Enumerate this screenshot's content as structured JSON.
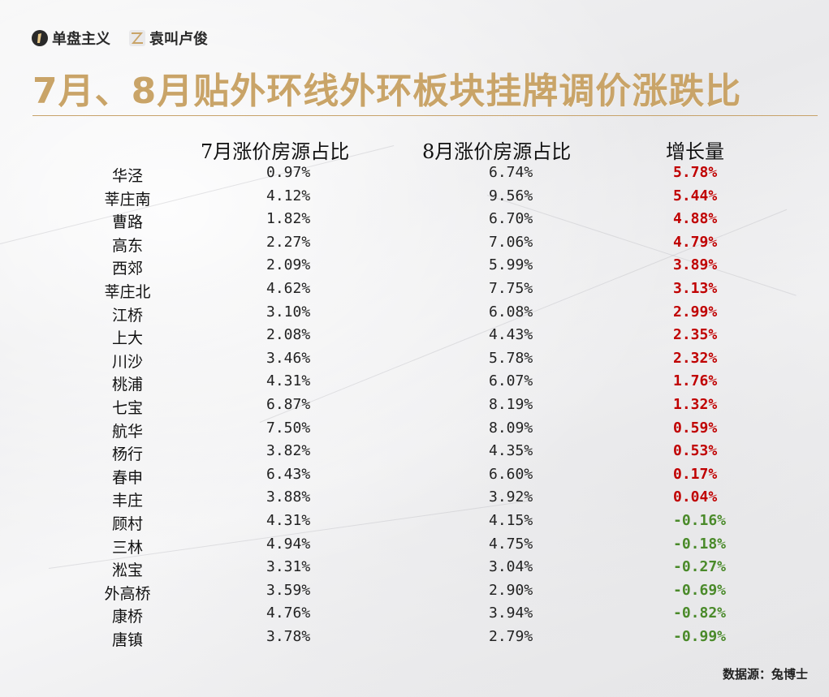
{
  "brands": [
    {
      "name": "单盘主义",
      "icon": "numeral-one-icon"
    },
    {
      "name": "袁叫卢俊",
      "icon": "z-logo-icon"
    }
  ],
  "title": "7月、8月贴外环线外环板块挂牌调价涨跌比",
  "headers": {
    "jul": "7月涨价房源占比",
    "aug": "8月涨价房源占比",
    "inc": "增长量"
  },
  "colors": {
    "title": "#c9a468",
    "positive": "#c00000",
    "negative": "#4a8a2a"
  },
  "rows": [
    {
      "name": "华泾",
      "jul": "0.97%",
      "aug": "6.74%",
      "inc": "5.78%",
      "dir": "up"
    },
    {
      "name": "莘庄南",
      "jul": "4.12%",
      "aug": "9.56%",
      "inc": "5.44%",
      "dir": "up"
    },
    {
      "name": "曹路",
      "jul": "1.82%",
      "aug": "6.70%",
      "inc": "4.88%",
      "dir": "up"
    },
    {
      "name": "高东",
      "jul": "2.27%",
      "aug": "7.06%",
      "inc": "4.79%",
      "dir": "up"
    },
    {
      "name": "西郊",
      "jul": "2.09%",
      "aug": "5.99%",
      "inc": "3.89%",
      "dir": "up"
    },
    {
      "name": "莘庄北",
      "jul": "4.62%",
      "aug": "7.75%",
      "inc": "3.13%",
      "dir": "up"
    },
    {
      "name": "江桥",
      "jul": "3.10%",
      "aug": "6.08%",
      "inc": "2.99%",
      "dir": "up"
    },
    {
      "name": "上大",
      "jul": "2.08%",
      "aug": "4.43%",
      "inc": "2.35%",
      "dir": "up"
    },
    {
      "name": "川沙",
      "jul": "3.46%",
      "aug": "5.78%",
      "inc": "2.32%",
      "dir": "up"
    },
    {
      "name": "桃浦",
      "jul": "4.31%",
      "aug": "6.07%",
      "inc": "1.76%",
      "dir": "up"
    },
    {
      "name": "七宝",
      "jul": "6.87%",
      "aug": "8.19%",
      "inc": "1.32%",
      "dir": "up"
    },
    {
      "name": "航华",
      "jul": "7.50%",
      "aug": "8.09%",
      "inc": "0.59%",
      "dir": "up"
    },
    {
      "name": "杨行",
      "jul": "3.82%",
      "aug": "4.35%",
      "inc": "0.53%",
      "dir": "up"
    },
    {
      "name": "春申",
      "jul": "6.43%",
      "aug": "6.60%",
      "inc": "0.17%",
      "dir": "up"
    },
    {
      "name": "丰庄",
      "jul": "3.88%",
      "aug": "3.92%",
      "inc": "0.04%",
      "dir": "up"
    },
    {
      "name": "顾村",
      "jul": "4.31%",
      "aug": "4.15%",
      "inc": "-0.16%",
      "dir": "down"
    },
    {
      "name": "三林",
      "jul": "4.94%",
      "aug": "4.75%",
      "inc": "-0.18%",
      "dir": "down"
    },
    {
      "name": "淞宝",
      "jul": "3.31%",
      "aug": "3.04%",
      "inc": "-0.27%",
      "dir": "down"
    },
    {
      "name": "外高桥",
      "jul": "3.59%",
      "aug": "2.90%",
      "inc": "-0.69%",
      "dir": "down"
    },
    {
      "name": "康桥",
      "jul": "4.76%",
      "aug": "3.94%",
      "inc": "-0.82%",
      "dir": "down"
    },
    {
      "name": "唐镇",
      "jul": "3.78%",
      "aug": "2.79%",
      "inc": "-0.99%",
      "dir": "down"
    }
  ],
  "source": "数据源：兔博士"
}
